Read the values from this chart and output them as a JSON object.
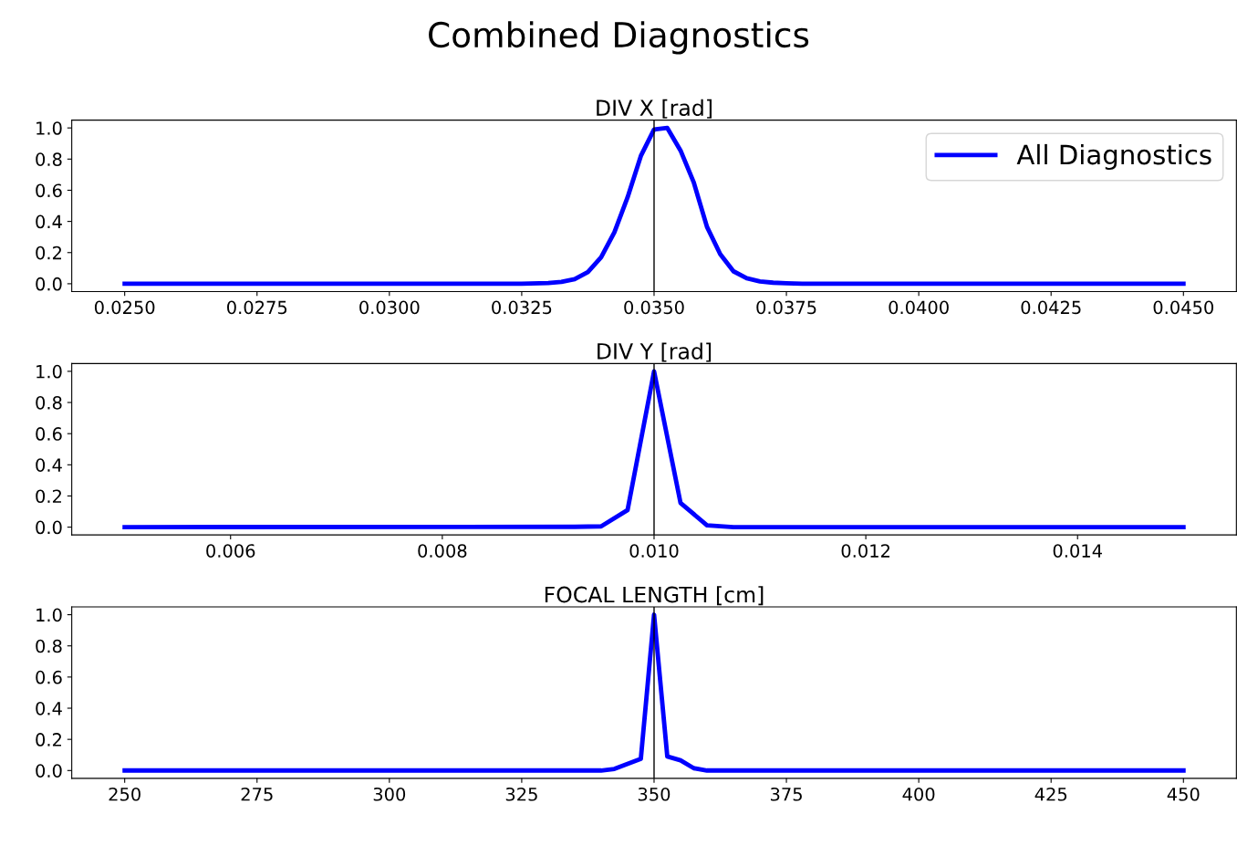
{
  "chart_data": [
    {
      "type": "line",
      "title": "DIV X [rad]",
      "annotations": [
        "Combined Diagnostics"
      ],
      "series": [
        {
          "name": "All Diagnostics",
          "color": "#0000ff",
          "x": [
            0.025,
            0.0325,
            0.033,
            0.03325,
            0.0335,
            0.03375,
            0.034,
            0.03425,
            0.0345,
            0.03475,
            0.035,
            0.03525,
            0.0355,
            0.03575,
            0.036,
            0.03625,
            0.0365,
            0.03675,
            0.037,
            0.03725,
            0.0375,
            0.0378,
            0.045
          ],
          "values": [
            0,
            0,
            0.005,
            0.012,
            0.03,
            0.075,
            0.17,
            0.33,
            0.555,
            0.82,
            0.99,
            1.0,
            0.855,
            0.65,
            0.365,
            0.19,
            0.08,
            0.035,
            0.015,
            0.007,
            0.003,
            0,
            0
          ]
        }
      ],
      "xlim": [
        0.024,
        0.046
      ],
      "ylim": [
        -0.05,
        1.05
      ],
      "xticks": [
        {
          "value": 0.025,
          "label": "0.0250"
        },
        {
          "value": 0.0275,
          "label": "0.0275"
        },
        {
          "value": 0.03,
          "label": "0.0300"
        },
        {
          "value": 0.0325,
          "label": "0.0325"
        },
        {
          "value": 0.035,
          "label": "0.0350"
        },
        {
          "value": 0.0375,
          "label": "0.0375"
        },
        {
          "value": 0.04,
          "label": "0.0400"
        },
        {
          "value": 0.0425,
          "label": "0.0425"
        },
        {
          "value": 0.045,
          "label": "0.0450"
        }
      ],
      "yticks": [
        {
          "value": 0,
          "label": "0.0"
        },
        {
          "value": 0.2,
          "label": "0.2"
        },
        {
          "value": 0.4,
          "label": "0.4"
        },
        {
          "value": 0.6,
          "label": "0.6"
        },
        {
          "value": 0.8,
          "label": "0.8"
        },
        {
          "value": 1,
          "label": "1.0"
        }
      ],
      "ref_lines": [
        {
          "axis": "x",
          "value": 0.035,
          "color": "#000000"
        }
      ],
      "legend": "top right",
      "grid": false
    },
    {
      "type": "line",
      "title": "DIV Y [rad]",
      "series": [
        {
          "color": "#0000ff",
          "x": [
            0.005,
            0.00925,
            0.0095,
            0.00975,
            0.01,
            0.01025,
            0.0105,
            0.01075,
            0.015
          ],
          "values": [
            0,
            0.002,
            0.005,
            0.11,
            1.0,
            0.155,
            0.012,
            0,
            0
          ]
        }
      ],
      "xlim": [
        0.0045,
        0.0155
      ],
      "ylim": [
        -0.05,
        1.05
      ],
      "xticks": [
        0.006,
        0.008,
        {
          "value": 0.01,
          "label": "0.010"
        },
        0.012,
        0.014
      ],
      "yticks": [
        {
          "value": 0,
          "label": "0.0"
        },
        {
          "value": 0.2,
          "label": "0.2"
        },
        {
          "value": 0.4,
          "label": "0.4"
        },
        {
          "value": 0.6,
          "label": "0.6"
        },
        {
          "value": 0.8,
          "label": "0.8"
        },
        {
          "value": 1,
          "label": "1.0"
        }
      ],
      "ref_lines": [
        {
          "axis": "x",
          "value": 0.01,
          "color": "#000000"
        }
      ],
      "legend": false,
      "grid": false
    },
    {
      "type": "line",
      "title": "FOCAL LENGTH [cm]",
      "series": [
        {
          "color": "#0000ff",
          "x": [
            250,
            340,
            342.5,
            347.5,
            350,
            352.5,
            355,
            357.5,
            360,
            450
          ],
          "values": [
            0,
            0,
            0.01,
            0.075,
            1.0,
            0.09,
            0.065,
            0.015,
            0,
            0
          ]
        }
      ],
      "xlim": [
        240,
        460
      ],
      "ylim": [
        -0.05,
        1.05
      ],
      "xticks": [
        250,
        275,
        300,
        325,
        350,
        375,
        400,
        425,
        450
      ],
      "yticks": [
        {
          "value": 0,
          "label": "0.0"
        },
        {
          "value": 0.2,
          "label": "0.2"
        },
        {
          "value": 0.4,
          "label": "0.4"
        },
        {
          "value": 0.6,
          "label": "0.6"
        },
        {
          "value": 0.8,
          "label": "0.8"
        },
        {
          "value": 1,
          "label": "1.0"
        }
      ],
      "ref_lines": [
        {
          "axis": "x",
          "value": 350,
          "color": "#000000"
        }
      ],
      "legend": false,
      "grid": false
    }
  ]
}
